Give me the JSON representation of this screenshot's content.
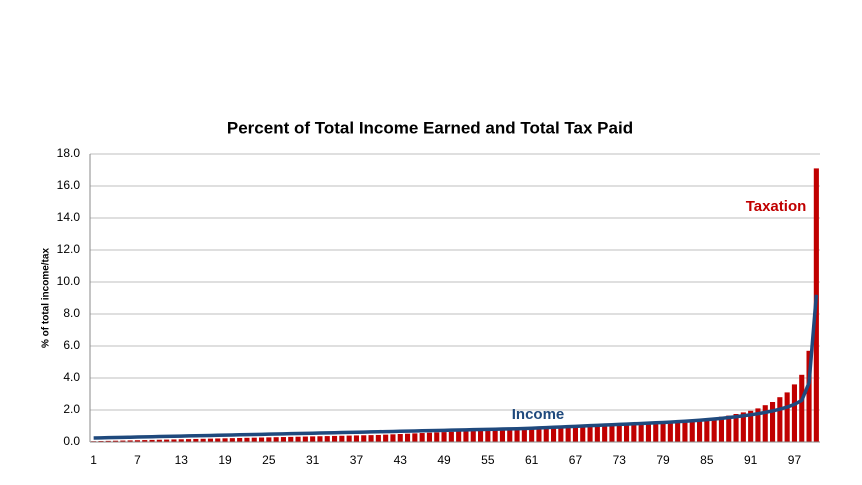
{
  "chart_data": {
    "type": "bar-line",
    "title": "Percent of Total Income Earned and Total Tax Paid",
    "y_label": "% of total income/tax",
    "categories": [
      "1",
      null,
      null,
      null,
      null,
      null,
      "7",
      null,
      null,
      null,
      null,
      null,
      "13",
      null,
      null,
      null,
      null,
      null,
      "19",
      null,
      null,
      null,
      null,
      null,
      "25",
      null,
      null,
      null,
      null,
      null,
      "31",
      null,
      null,
      null,
      null,
      null,
      "37",
      null,
      null,
      null,
      null,
      null,
      "43",
      null,
      null,
      null,
      null,
      null,
      "49",
      null,
      null,
      null,
      null,
      null,
      "55",
      null,
      null,
      null,
      null,
      null,
      "61",
      null,
      null,
      null,
      null,
      null,
      "67",
      null,
      null,
      null,
      null,
      null,
      "73",
      null,
      null,
      null,
      null,
      null,
      "79",
      null,
      null,
      null,
      null,
      null,
      "85",
      null,
      null,
      null,
      null,
      null,
      "91",
      null,
      null,
      null,
      null,
      null,
      "97",
      null,
      null,
      null
    ],
    "series": [
      {
        "name": "Taxation",
        "kind": "bar",
        "color": "#c00000",
        "values": [
          0.05,
          0.06,
          0.07,
          0.08,
          0.09,
          0.1,
          0.11,
          0.12,
          0.13,
          0.14,
          0.15,
          0.16,
          0.17,
          0.18,
          0.19,
          0.2,
          0.21,
          0.22,
          0.23,
          0.24,
          0.25,
          0.26,
          0.27,
          0.28,
          0.29,
          0.3,
          0.31,
          0.32,
          0.33,
          0.34,
          0.35,
          0.36,
          0.37,
          0.38,
          0.39,
          0.4,
          0.41,
          0.42,
          0.43,
          0.44,
          0.46,
          0.48,
          0.5,
          0.52,
          0.54,
          0.56,
          0.58,
          0.6,
          0.62,
          0.64,
          0.66,
          0.68,
          0.7,
          0.72,
          0.74,
          0.76,
          0.78,
          0.8,
          0.82,
          0.84,
          0.86,
          0.88,
          0.9,
          0.92,
          0.94,
          0.96,
          0.98,
          1.0,
          1.02,
          1.04,
          1.06,
          1.08,
          1.1,
          1.12,
          1.14,
          1.17,
          1.2,
          1.23,
          1.26,
          1.29,
          1.32,
          1.35,
          1.38,
          1.42,
          1.46,
          1.52,
          1.58,
          1.65,
          1.75,
          1.85,
          1.95,
          2.1,
          2.3,
          2.5,
          2.8,
          3.1,
          3.6,
          4.2,
          5.7,
          17.1
        ]
      },
      {
        "name": "Income",
        "kind": "line",
        "color": "#1f497d",
        "values": [
          0.25,
          0.26,
          0.27,
          0.28,
          0.29,
          0.3,
          0.31,
          0.32,
          0.33,
          0.34,
          0.35,
          0.36,
          0.37,
          0.38,
          0.39,
          0.4,
          0.41,
          0.42,
          0.43,
          0.44,
          0.45,
          0.46,
          0.47,
          0.48,
          0.49,
          0.5,
          0.51,
          0.52,
          0.53,
          0.54,
          0.55,
          0.56,
          0.57,
          0.58,
          0.59,
          0.6,
          0.61,
          0.62,
          0.63,
          0.64,
          0.65,
          0.66,
          0.67,
          0.68,
          0.69,
          0.7,
          0.71,
          0.72,
          0.73,
          0.74,
          0.75,
          0.76,
          0.77,
          0.78,
          0.79,
          0.8,
          0.81,
          0.82,
          0.83,
          0.84,
          0.86,
          0.88,
          0.9,
          0.92,
          0.94,
          0.96,
          0.98,
          1.0,
          1.02,
          1.04,
          1.06,
          1.08,
          1.1,
          1.12,
          1.14,
          1.16,
          1.18,
          1.2,
          1.22,
          1.24,
          1.27,
          1.3,
          1.33,
          1.36,
          1.4,
          1.44,
          1.48,
          1.53,
          1.58,
          1.64,
          1.7,
          1.77,
          1.85,
          1.94,
          2.05,
          2.18,
          2.35,
          2.6,
          3.7,
          9.2
        ]
      }
    ],
    "ylim": [
      0,
      18
    ],
    "yticks": [
      {
        "value": 0,
        "label": "0.0"
      },
      {
        "value": 2,
        "label": "2.0"
      },
      {
        "value": 4,
        "label": "4.0"
      },
      {
        "value": 6,
        "label": "6.0"
      },
      {
        "value": 8,
        "label": "8.0"
      },
      {
        "value": 10,
        "label": "10.0"
      },
      {
        "value": 12,
        "label": "12.0"
      },
      {
        "value": 14,
        "label": "14.0"
      },
      {
        "value": 16,
        "label": "16.0"
      },
      {
        "value": 18,
        "label": "18.0"
      }
    ],
    "grid": true
  }
}
